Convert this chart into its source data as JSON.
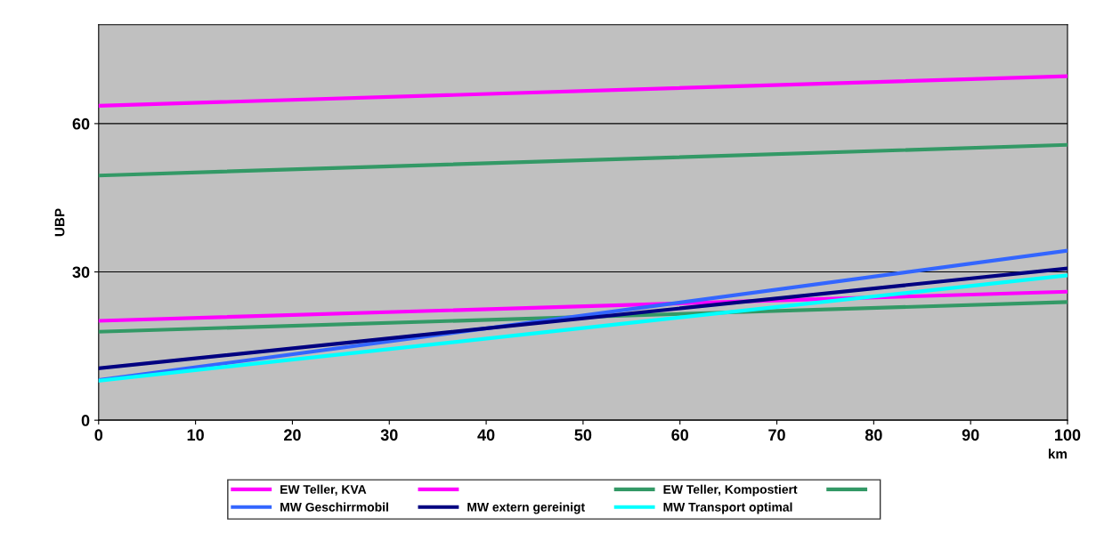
{
  "chart_data": {
    "type": "line",
    "xlabel": "km",
    "ylabel": "UBP",
    "x": [
      0,
      100
    ],
    "xlim": [
      0,
      100
    ],
    "xticks": [
      0,
      10,
      20,
      30,
      40,
      50,
      60,
      70,
      80,
      90,
      100
    ],
    "ylim": [
      0,
      80
    ],
    "yticks": [
      0,
      30,
      60
    ],
    "grid": "y",
    "legend": "bottom",
    "line_style": "solid",
    "marker": "none",
    "series": [
      {
        "name": "EW Teller, KVA",
        "color": "#ff00ff",
        "values": [
          63.6,
          69.6
        ]
      },
      {
        "color": "#ff00ff",
        "values": [
          20.1,
          26.0
        ]
      },
      {
        "name": "EW Teller, Kompostiert",
        "color": "#339966",
        "values": [
          49.5,
          55.7
        ]
      },
      {
        "color": "#339966",
        "values": [
          17.9,
          23.9
        ]
      },
      {
        "name": "MW Geschirrmobil",
        "color": "#3366ff",
        "values": [
          8.1,
          34.3
        ]
      },
      {
        "name": "MW extern gereinigt",
        "color": "#000080",
        "values": [
          10.5,
          30.7
        ]
      },
      {
        "name": "MW Transport optimal",
        "color": "#00ffff",
        "values": [
          8.0,
          29.3
        ]
      }
    ]
  }
}
